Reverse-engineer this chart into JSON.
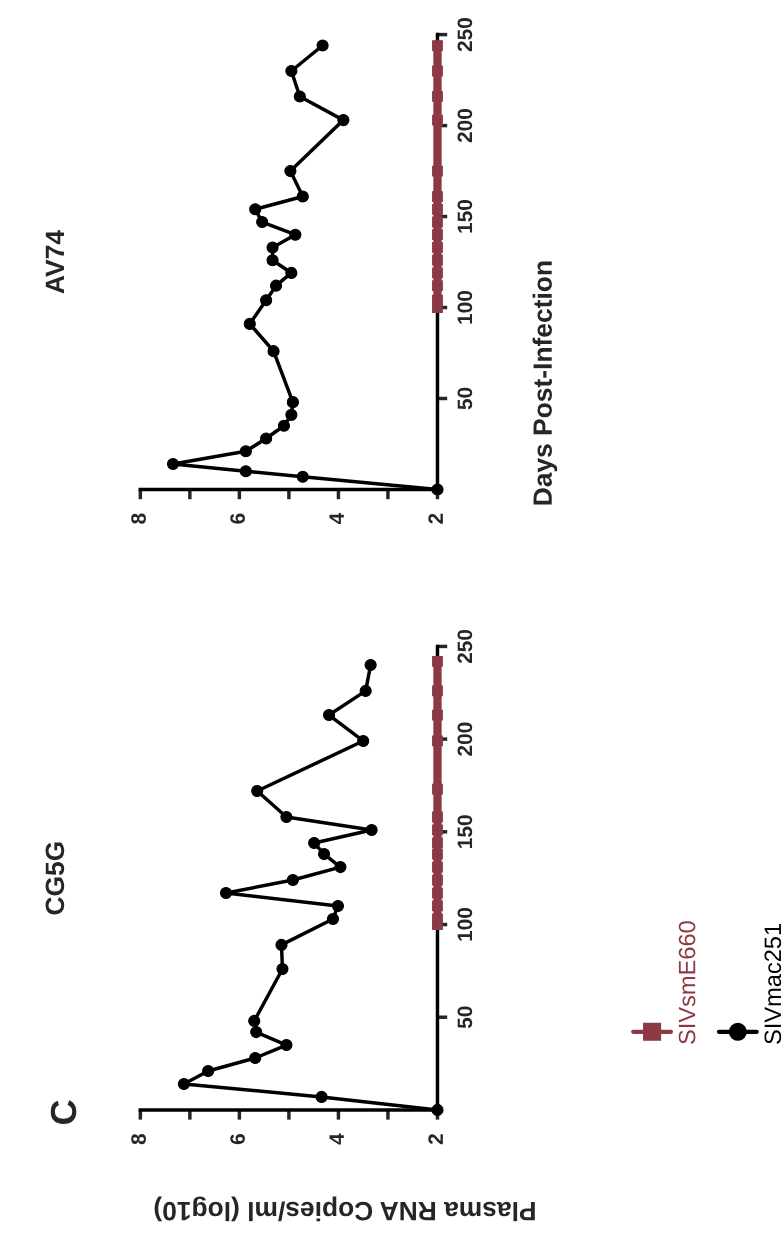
{
  "chart_data": [
    {
      "type": "line",
      "title": "CG5G",
      "xlabel": "Plasma RNA Copies/ml (log10)",
      "ylabel": "Days Post-Infection",
      "annotations": [
        "C"
      ],
      "xlim": [
        8,
        2
      ],
      "xticks": [
        {
          "value": 8,
          "label": "8"
        },
        {
          "value": 7,
          "label": null
        },
        {
          "value": 6,
          "label": "6"
        },
        {
          "value": 5,
          "label": null
        },
        {
          "value": 4,
          "label": "4"
        },
        {
          "value": 3,
          "label": null
        },
        {
          "value": 2,
          "label": "2"
        }
      ],
      "ylim": [
        0,
        250
      ],
      "yticks": [
        50,
        100,
        150,
        200,
        250
      ],
      "grid": false,
      "series": [
        {
          "color": "#000000",
          "marker": "circle",
          "values": [
            0,
            7,
            14,
            21,
            28,
            35,
            42,
            48,
            76,
            89,
            103,
            110,
            117,
            124,
            131,
            138,
            144,
            151,
            158,
            172,
            199,
            213,
            226,
            240
          ],
          "x": [
            2.0,
            4.34,
            7.12,
            6.63,
            5.68,
            5.05,
            5.66,
            5.7,
            5.13,
            5.15,
            4.11,
            4.01,
            6.27,
            4.92,
            3.96,
            4.29,
            4.49,
            3.33,
            5.05,
            5.64,
            3.5,
            4.19,
            3.45,
            3.35
          ]
        },
        {
          "color": "#8b3a45",
          "marker": "square",
          "values": [
            100,
            103,
            110,
            117,
            124,
            131,
            138,
            144,
            151,
            158,
            173,
            199,
            213,
            226,
            242
          ],
          "x": [
            2,
            2,
            2,
            2,
            2,
            2,
            2,
            2,
            2,
            2,
            2,
            2,
            2,
            2,
            2
          ]
        }
      ]
    },
    {
      "type": "line",
      "title": "AV74",
      "legend": "bottom",
      "xlim": [
        8,
        2
      ],
      "xticks": [
        {
          "value": 8,
          "label": "8"
        },
        {
          "value": 7,
          "label": null
        },
        {
          "value": 6,
          "label": "6"
        },
        {
          "value": 5,
          "label": null
        },
        {
          "value": 4,
          "label": "4"
        },
        {
          "value": 3,
          "label": null
        },
        {
          "value": 2,
          "label": "2"
        }
      ],
      "ylim": [
        0,
        250
      ],
      "yticks": [
        50,
        100,
        150,
        200,
        250
      ],
      "grid": false,
      "series": [
        {
          "name": "SIVmac251",
          "color": "#000000",
          "marker": "circle",
          "values": [
            0,
            7,
            10,
            14,
            21,
            28,
            35,
            41,
            48,
            76,
            91,
            104,
            112,
            119,
            126,
            133,
            140,
            147,
            154,
            161,
            175,
            203,
            216,
            230,
            244
          ],
          "x": [
            2.0,
            4.72,
            5.87,
            7.34,
            5.87,
            5.46,
            5.1,
            4.95,
            4.92,
            5.31,
            5.79,
            5.46,
            5.26,
            4.95,
            5.33,
            5.33,
            4.87,
            5.54,
            5.68,
            4.72,
            4.97,
            3.9,
            4.78,
            4.95,
            4.32
          ]
        },
        {
          "name": "SIVsmE660",
          "color": "#8b3a45",
          "marker": "square",
          "values": [
            100,
            104,
            112,
            119,
            126,
            133,
            140,
            147,
            154,
            161,
            175,
            203,
            216,
            230,
            244
          ],
          "x": [
            2,
            2,
            2,
            2,
            2,
            2,
            2,
            2,
            2,
            2,
            2,
            2,
            2,
            2,
            2
          ]
        }
      ]
    }
  ]
}
